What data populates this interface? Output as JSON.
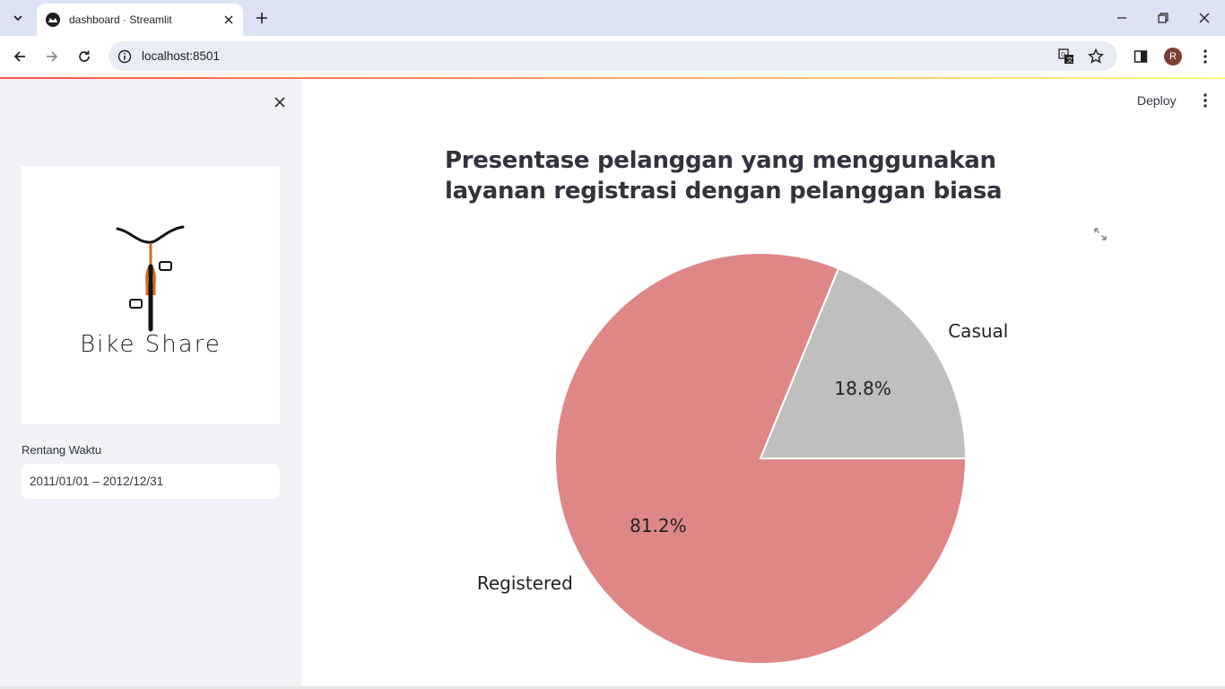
{
  "browser": {
    "tab_title": "dashboard · Streamlit",
    "url": "localhost:8501",
    "profile_initial": "R"
  },
  "app": {
    "deploy_label": "Deploy",
    "heading": "Presentase pelanggan yang menggunakan layanan registrasi dengan pelanggan biasa"
  },
  "sidebar": {
    "logo_text": "Bike Share",
    "date_label": "Rentang Waktu",
    "date_value": "2011/01/01 – 2012/12/31"
  },
  "colors": {
    "registered": "#df8686",
    "casual": "#bfbfbf",
    "sidebar_bg": "#f0f2f6"
  },
  "chart_data": {
    "type": "pie",
    "categories": [
      "Casual",
      "Registered"
    ],
    "values": [
      18.8,
      81.2
    ],
    "value_labels": [
      "18.8%",
      "81.2%"
    ],
    "colors": [
      "#bfbfbf",
      "#df8686"
    ],
    "start_angle_deg": 0
  }
}
